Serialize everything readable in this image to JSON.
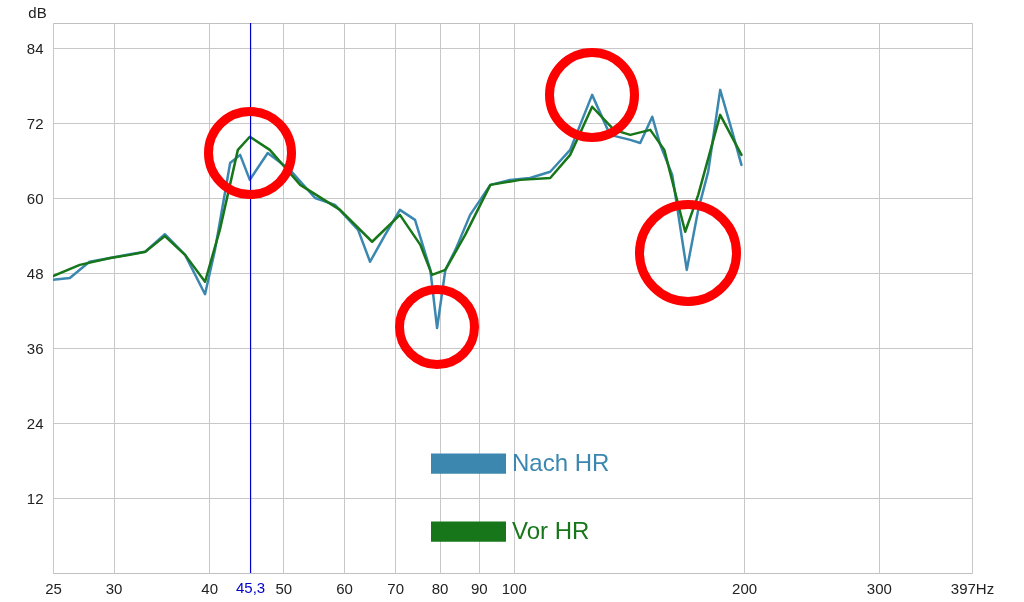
{
  "chart_data": {
    "type": "line",
    "ylabel": "dB",
    "log": "x",
    "xlim": [
      25,
      397
    ],
    "ylim": [
      0,
      88
    ],
    "xticks": [
      25,
      30,
      40,
      50,
      60,
      70,
      80,
      90,
      100,
      200,
      300,
      {
        "value": 397,
        "label": "397Hz"
      }
    ],
    "yticks": [
      12,
      24,
      36,
      48,
      60,
      72,
      84
    ],
    "grid": true,
    "legend": "bottom",
    "line_style": "solid",
    "marker": "none",
    "ref_lines": [
      {
        "axis": "x",
        "value": 45.3,
        "label": "45,3",
        "color": "#0000cc"
      }
    ],
    "series": [
      {
        "name": "Nach HR",
        "color": "#3b87b0",
        "x": [
          25,
          26.3,
          27.9,
          29.7,
          31.5,
          33.0,
          35.0,
          37.2,
          39.5,
          40.7,
          42.6,
          43.9,
          45.2,
          47.7,
          51.0,
          55.0,
          58.4,
          62.6,
          64.9,
          67.9,
          71.0,
          74.3,
          77.8,
          79.4,
          81.4,
          83.9,
          87.7,
          93.2,
          98.9,
          105,
          111.6,
          118.5,
          126.6,
          133.6,
          142,
          146.3,
          151.7,
          155.4,
          161.1,
          168.3,
          174.2,
          179.5,
          186.1,
          193.5,
          198.4
        ],
        "values": [
          46.9,
          47.2,
          49.8,
          50.4,
          51.0,
          51.4,
          54.2,
          50.9,
          44.6,
          51.7,
          65.6,
          66.9,
          62.9,
          67.2,
          64.5,
          60.0,
          58.9,
          54.9,
          49.8,
          54.1,
          58.1,
          56.5,
          48.5,
          39.2,
          48.5,
          51.7,
          57.3,
          62.1,
          62.9,
          63.2,
          64.2,
          67.7,
          76.5,
          70.1,
          69.3,
          68.8,
          73.0,
          68.5,
          63.7,
          48.5,
          58.1,
          64.2,
          77.3,
          70.1,
          65.3
        ]
      },
      {
        "name": "Vor HR",
        "color": "#17761a",
        "x": [
          25,
          27.1,
          29.7,
          31.5,
          33.0,
          35.0,
          37.2,
          39.5,
          41.3,
          43.6,
          45.2,
          48.0,
          52.6,
          59.3,
          65.3,
          71.0,
          75.5,
          78.2,
          81.4,
          86.4,
          93.2,
          102,
          111.6,
          118.5,
          126.6,
          135.2,
          142,
          150.8,
          157.3,
          167.5,
          174.2,
          186.1,
          198.4
        ],
        "values": [
          47.5,
          49.3,
          50.4,
          50.9,
          51.4,
          53.9,
          50.9,
          46.6,
          54.9,
          67.7,
          69.8,
          67.7,
          62.1,
          58.1,
          53.0,
          57.3,
          52.5,
          47.7,
          48.5,
          54.1,
          62.1,
          62.9,
          63.2,
          66.9,
          74.6,
          70.9,
          70.1,
          70.9,
          67.7,
          54.6,
          60.5,
          73.3,
          66.9
        ]
      }
    ]
  }
}
